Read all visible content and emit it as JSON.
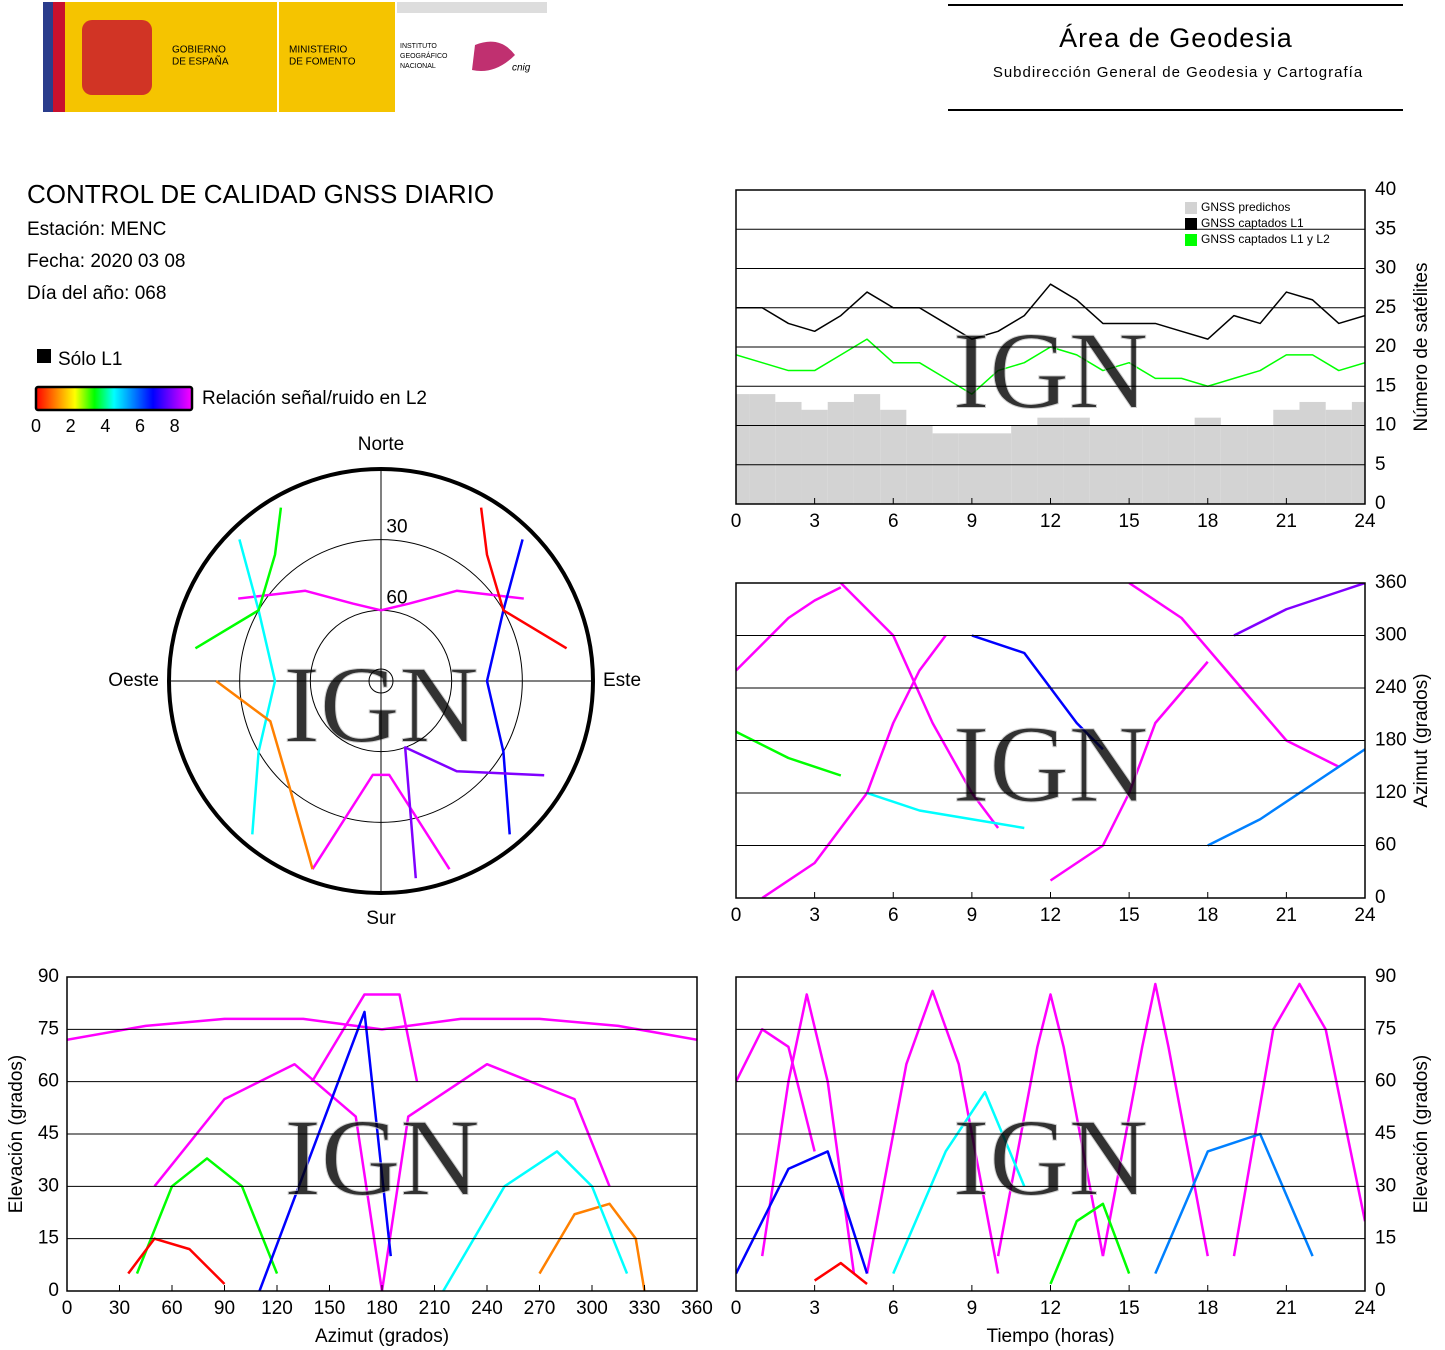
{
  "header": {
    "gobierno": [
      "GOBIERNO",
      "DE ESPAÑA"
    ],
    "ministerio": [
      "MINISTERIO",
      "DE FOMENTO"
    ],
    "instituto": [
      "INSTITUTO",
      "GEOGRÁFICO",
      "NACIONAL"
    ],
    "cnig": "cnig",
    "org_title": "Área de Geodesia",
    "org_subtitle": "Subdirección General de Geodesia y Cartografía"
  },
  "info": {
    "title": "CONTROL DE CALIDAD GNSS DIARIO",
    "station": "Estación: MENC",
    "date": "Fecha: 2020 03 08",
    "doy": "Día del año: 068"
  },
  "snr_legend": {
    "only_l1": "Sólo L1",
    "only_l1_color": "#000000",
    "label": "Relación señal/ruido en L2",
    "colors": [
      "#ff0000",
      "#ff8000",
      "#ffff00",
      "#00ff00",
      "#00ffff",
      "#0080ff",
      "#0000ff",
      "#8000ff",
      "#ff00ff"
    ],
    "clim": [
      0,
      9
    ],
    "ticks": [
      0,
      2,
      4,
      6,
      8
    ]
  },
  "watermark": "IGN",
  "chart_data": [
    {
      "type": "line",
      "ylabel": "Número de satélites",
      "yaxis_side": "right",
      "legend": "upper-right",
      "grid": true,
      "x": [
        0,
        1,
        2,
        3,
        4,
        5,
        6,
        7,
        8,
        9,
        10,
        11,
        12,
        13,
        14,
        15,
        16,
        17,
        18,
        19,
        20,
        21,
        22,
        23,
        24
      ],
      "xlim": [
        0,
        24
      ],
      "ylim": [
        0,
        40
      ],
      "xticks": [
        0,
        3,
        6,
        9,
        12,
        15,
        18,
        21,
        24
      ],
      "yticks": [
        0,
        5,
        10,
        15,
        20,
        25,
        30,
        35,
        40
      ],
      "series": [
        {
          "name": "GNSS predichos",
          "color": "#d3d3d3",
          "style": "bars",
          "values": [
            14,
            14,
            13,
            12,
            13,
            14,
            12,
            10,
            9,
            9,
            9,
            10,
            11,
            11,
            10,
            10,
            10,
            10,
            11,
            10,
            10,
            12,
            13,
            12,
            13
          ]
        },
        {
          "name": "GNSS captados L1",
          "color": "#000000",
          "values": [
            25,
            25,
            23,
            22,
            24,
            27,
            25,
            25,
            23,
            21,
            22,
            24,
            28,
            26,
            23,
            23,
            23,
            22,
            21,
            24,
            23,
            27,
            26,
            23,
            24
          ]
        },
        {
          "name": "GNSS captados L1 y L2",
          "color": "#00ff00",
          "values": [
            19,
            18,
            17,
            17,
            19,
            21,
            18,
            18,
            16,
            14,
            17,
            18,
            20,
            19,
            17,
            18,
            16,
            16,
            15,
            16,
            17,
            19,
            19,
            17,
            18
          ]
        }
      ]
    },
    {
      "type": "scatter",
      "ylabel": "Azimut (grados)",
      "yaxis_side": "right",
      "grid": true,
      "xlim": [
        0,
        24
      ],
      "ylim": [
        0,
        360
      ],
      "xticks": [
        0,
        3,
        6,
        9,
        12,
        15,
        18,
        21,
        24
      ],
      "yticks": [
        0,
        60,
        120,
        180,
        240,
        300,
        360
      ],
      "series": [
        {
          "color": "#ff00ff",
          "x": [
            0,
            1,
            2,
            3,
            4
          ],
          "values": [
            260,
            290,
            320,
            340,
            355
          ]
        },
        {
          "color": "#ff00ff",
          "x": [
            1,
            3,
            5,
            6,
            7,
            8
          ],
          "values": [
            0,
            40,
            120,
            200,
            260,
            300
          ]
        },
        {
          "color": "#ff00ff",
          "x": [
            4,
            6,
            7.5,
            9,
            10
          ],
          "values": [
            360,
            300,
            200,
            120,
            80
          ]
        },
        {
          "color": "#0000ff",
          "x": [
            9,
            11,
            12,
            13,
            14
          ],
          "values": [
            300,
            280,
            240,
            200,
            170
          ]
        },
        {
          "color": "#ff00ff",
          "x": [
            12,
            14,
            15,
            16,
            18
          ],
          "values": [
            20,
            60,
            120,
            200,
            270
          ]
        },
        {
          "color": "#ff00ff",
          "x": [
            15,
            17,
            19,
            21,
            23
          ],
          "values": [
            360,
            320,
            250,
            180,
            150
          ]
        },
        {
          "color": "#00ff00",
          "x": [
            0,
            2,
            4
          ],
          "values": [
            190,
            160,
            140
          ]
        },
        {
          "color": "#0080ff",
          "x": [
            18,
            20,
            22,
            24
          ],
          "values": [
            60,
            90,
            130,
            170
          ]
        },
        {
          "color": "#00ffff",
          "x": [
            5,
            7,
            9,
            11
          ],
          "values": [
            120,
            100,
            90,
            80
          ]
        },
        {
          "color": "#8000ff",
          "x": [
            19,
            21,
            23,
            24
          ],
          "values": [
            300,
            330,
            350,
            360
          ]
        }
      ]
    },
    {
      "type": "skyplot",
      "directions": {
        "north": "Norte",
        "south": "Sur",
        "east": "Este",
        "west": "Oeste"
      },
      "rlim": [
        0,
        90
      ],
      "rticks": [
        30,
        60
      ],
      "series": [
        {
          "color": "#ff00ff",
          "azimuth": [
            300,
            320,
            340,
            0,
            20,
            40,
            60
          ],
          "elevation": [
            20,
            40,
            55,
            60,
            55,
            40,
            20
          ]
        },
        {
          "color": "#ff00ff",
          "azimuth": [
            160,
            175,
            185,
            200
          ],
          "elevation": [
            5,
            50,
            50,
            5
          ]
        },
        {
          "color": "#00ffff",
          "azimuth": [
            315,
            300,
            270,
            240,
            220
          ],
          "elevation": [
            5,
            30,
            45,
            30,
            5
          ]
        },
        {
          "color": "#0000ff",
          "azimuth": [
            45,
            60,
            90,
            120,
            140
          ],
          "elevation": [
            5,
            30,
            45,
            30,
            5
          ]
        },
        {
          "color": "#00ff00",
          "azimuth": [
            330,
            320,
            300,
            280
          ],
          "elevation": [
            5,
            20,
            30,
            10
          ]
        },
        {
          "color": "#ff0000",
          "azimuth": [
            30,
            40,
            60,
            80
          ],
          "elevation": [
            5,
            20,
            30,
            10
          ]
        },
        {
          "color": "#ff8000",
          "azimuth": [
            200,
            220,
            250,
            270
          ],
          "elevation": [
            5,
            30,
            40,
            20
          ]
        },
        {
          "color": "#8000ff",
          "azimuth": [
            120,
            140,
            160,
            170
          ],
          "elevation": [
            10,
            40,
            60,
            5
          ]
        }
      ]
    },
    {
      "type": "scatter",
      "xlabel": "Azimut (grados)",
      "ylabel": "Elevación (grados)",
      "yaxis_side": "left",
      "grid": true,
      "xlim": [
        0,
        360
      ],
      "ylim": [
        0,
        90
      ],
      "xticks": [
        0,
        30,
        60,
        90,
        120,
        150,
        180,
        210,
        240,
        270,
        300,
        330,
        360
      ],
      "yticks": [
        0,
        15,
        30,
        45,
        60,
        75,
        90
      ],
      "series": [
        {
          "color": "#ff00ff",
          "x": [
            0,
            45,
            90,
            135,
            180,
            225,
            270,
            315,
            360
          ],
          "values": [
            72,
            76,
            78,
            78,
            75,
            78,
            78,
            76,
            72
          ]
        },
        {
          "color": "#ff00ff",
          "x": [
            50,
            90,
            130,
            165,
            180
          ],
          "values": [
            30,
            55,
            65,
            50,
            0
          ]
        },
        {
          "color": "#ff00ff",
          "x": [
            180,
            195,
            240,
            290,
            310
          ],
          "values": [
            0,
            50,
            65,
            55,
            30
          ]
        },
        {
          "color": "#00ff00",
          "x": [
            40,
            60,
            80,
            100,
            120
          ],
          "values": [
            5,
            30,
            38,
            30,
            5
          ]
        },
        {
          "color": "#ff8000",
          "x": [
            270,
            290,
            310,
            325,
            330
          ],
          "values": [
            5,
            22,
            25,
            15,
            0
          ]
        },
        {
          "color": "#ff0000",
          "x": [
            35,
            50,
            70,
            90
          ],
          "values": [
            5,
            15,
            12,
            2
          ]
        },
        {
          "color": "#ff00ff",
          "x": [
            140,
            170,
            190,
            200
          ],
          "values": [
            60,
            85,
            85,
            60
          ]
        },
        {
          "color": "#00ffff",
          "x": [
            215,
            250,
            280,
            300,
            320
          ],
          "values": [
            0,
            30,
            40,
            30,
            5
          ]
        },
        {
          "color": "#0000ff",
          "x": [
            110,
            140,
            170,
            185
          ],
          "values": [
            0,
            40,
            80,
            10
          ]
        }
      ]
    },
    {
      "type": "scatter",
      "xlabel": "Tiempo (horas)",
      "ylabel": "Elevación (grados)",
      "yaxis_side": "right",
      "grid": true,
      "xlim": [
        0,
        24
      ],
      "ylim": [
        0,
        90
      ],
      "xticks": [
        0,
        3,
        6,
        9,
        12,
        15,
        18,
        21,
        24
      ],
      "yticks": [
        0,
        15,
        30,
        45,
        60,
        75,
        90
      ],
      "series": [
        {
          "color": "#ff00ff",
          "x": [
            0,
            1,
            2,
            3
          ],
          "values": [
            60,
            75,
            70,
            40
          ]
        },
        {
          "color": "#ff00ff",
          "x": [
            1,
            2,
            2.7,
            3.5,
            4.5
          ],
          "values": [
            10,
            60,
            85,
            60,
            5
          ]
        },
        {
          "color": "#ff00ff",
          "x": [
            5,
            6.5,
            7.5,
            8.5,
            10
          ],
          "values": [
            5,
            65,
            86,
            65,
            5
          ]
        },
        {
          "color": "#ff00ff",
          "x": [
            10,
            11.5,
            12,
            12.5,
            14
          ],
          "values": [
            10,
            70,
            85,
            70,
            10
          ]
        },
        {
          "color": "#ff00ff",
          "x": [
            14,
            15.5,
            16,
            16.5,
            18
          ],
          "values": [
            10,
            70,
            88,
            70,
            10
          ]
        },
        {
          "color": "#ff00ff",
          "x": [
            19,
            20.5,
            21.5,
            22.5,
            24
          ],
          "values": [
            10,
            75,
            88,
            75,
            20
          ]
        },
        {
          "color": "#0000ff",
          "x": [
            0,
            2,
            3.5,
            5
          ],
          "values": [
            5,
            35,
            40,
            5
          ]
        },
        {
          "color": "#00ffff",
          "x": [
            6,
            8,
            9.5,
            11
          ],
          "values": [
            5,
            40,
            57,
            30
          ]
        },
        {
          "color": "#00ff00",
          "x": [
            12,
            13,
            14,
            15
          ],
          "values": [
            2,
            20,
            25,
            5
          ]
        },
        {
          "color": "#ff0000",
          "x": [
            3,
            4,
            5
          ],
          "values": [
            3,
            8,
            2
          ]
        },
        {
          "color": "#0080ff",
          "x": [
            16,
            18,
            20,
            22
          ],
          "values": [
            5,
            40,
            45,
            10
          ]
        }
      ]
    }
  ]
}
